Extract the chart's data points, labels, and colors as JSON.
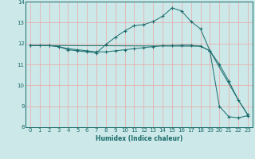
{
  "xlabel": "Humidex (Indice chaleur)",
  "xlim": [
    -0.5,
    23.5
  ],
  "ylim": [
    8,
    14
  ],
  "yticks": [
    8,
    9,
    10,
    11,
    12,
    13,
    14
  ],
  "xticks": [
    0,
    1,
    2,
    3,
    4,
    5,
    6,
    7,
    8,
    9,
    10,
    11,
    12,
    13,
    14,
    15,
    16,
    17,
    18,
    19,
    20,
    21,
    22,
    23
  ],
  "bg_color": "#cce8e8",
  "grid_color": "#b0d8d8",
  "line_color": "#1a6b6b",
  "series1_x": [
    0,
    1,
    2,
    3,
    4,
    5,
    6,
    7,
    8,
    9,
    10,
    11,
    12,
    13,
    14,
    15,
    16,
    17,
    18,
    19,
    20,
    21,
    22,
    23
  ],
  "series1_y": [
    11.9,
    11.9,
    11.9,
    11.85,
    11.7,
    11.65,
    11.6,
    11.55,
    11.95,
    12.3,
    12.6,
    12.85,
    12.9,
    13.05,
    13.3,
    13.7,
    13.55,
    13.05,
    12.7,
    11.65,
    9.0,
    8.5,
    8.45,
    8.55
  ],
  "series2_x": [
    0,
    2,
    3,
    18,
    19,
    22,
    23
  ],
  "series2_y": [
    11.9,
    11.9,
    11.9,
    11.87,
    11.65,
    9.3,
    8.6
  ],
  "series3_x": [
    0,
    2,
    3,
    4,
    5,
    6,
    7,
    8,
    9,
    10,
    11,
    12,
    13,
    14,
    15,
    16,
    17,
    18,
    19,
    20,
    21,
    22,
    23
  ],
  "series3_y": [
    11.9,
    11.9,
    11.85,
    11.75,
    11.7,
    11.65,
    11.6,
    11.6,
    11.65,
    11.7,
    11.75,
    11.8,
    11.85,
    11.9,
    11.9,
    11.92,
    11.92,
    11.87,
    11.65,
    11.0,
    10.2,
    9.3,
    8.6
  ]
}
